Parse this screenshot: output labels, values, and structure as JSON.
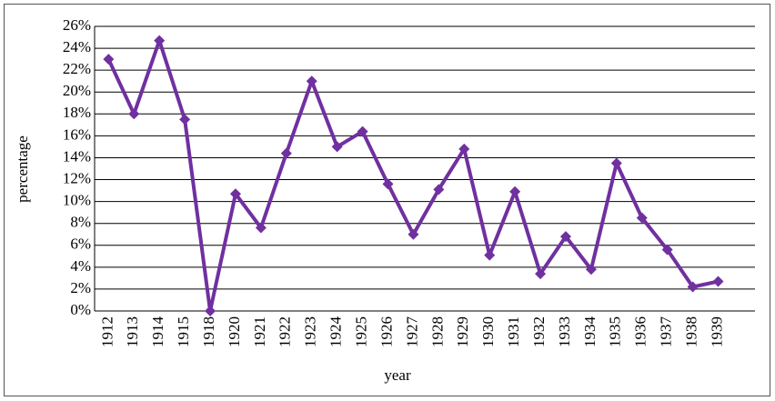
{
  "chart_data": {
    "type": "line",
    "x_label": "year",
    "y_label": "percentage",
    "categories": [
      "1912",
      "1913",
      "1914",
      "1915",
      "1918",
      "1920",
      "1921",
      "1922",
      "1923",
      "1924",
      "1925",
      "1926",
      "1927",
      "1928",
      "1929",
      "1930",
      "1931",
      "1932",
      "1933",
      "1934",
      "1935",
      "1936",
      "1937",
      "1938",
      "1939"
    ],
    "values": [
      23.0,
      18.0,
      24.7,
      17.5,
      0,
      10.7,
      7.6,
      14.4,
      21.0,
      15.0,
      16.4,
      11.6,
      7.0,
      11.1,
      14.8,
      5.1,
      10.9,
      3.4,
      6.8,
      3.8,
      13.5,
      8.5,
      5.6,
      2.2,
      2.7
    ],
    "color": "#7030a0",
    "ylim": [
      0,
      26
    ],
    "yticks": [
      {
        "value": 0,
        "label": "0%"
      },
      {
        "value": 2,
        "label": "2%"
      },
      {
        "value": 4,
        "label": "4%"
      },
      {
        "value": 6,
        "label": "6%"
      },
      {
        "value": 8,
        "label": "8%"
      },
      {
        "value": 10,
        "label": "10%"
      },
      {
        "value": 12,
        "label": "12%"
      },
      {
        "value": 14,
        "label": "14%"
      },
      {
        "value": 16,
        "label": "16%"
      },
      {
        "value": 18,
        "label": "18%"
      },
      {
        "value": 20,
        "label": "20%"
      },
      {
        "value": 22,
        "label": "22%"
      },
      {
        "value": 24,
        "label": "24%"
      },
      {
        "value": 26,
        "label": "26%"
      }
    ],
    "grid": true
  }
}
